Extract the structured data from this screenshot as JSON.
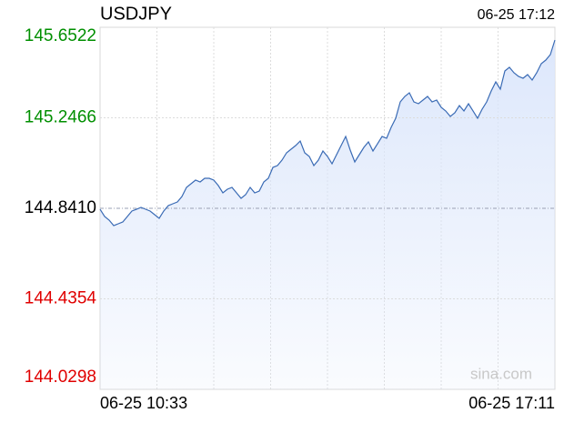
{
  "chart_data": {
    "type": "area-line",
    "title": "USDJPY",
    "timestamp": "06-25 17:12",
    "watermark": "sina.com",
    "color": "#3a6bb5",
    "fill": "#dbe6fb",
    "up_color": "#008f00",
    "down_color": "#e00000",
    "baseline": 144.841,
    "ylim": [
      144.0298,
      145.6522
    ],
    "yticks": [
      145.6522,
      145.2466,
      {
        "value": 144.841,
        "label": "144.8410"
      },
      144.4354,
      144.0298
    ],
    "grid": true,
    "categories": [
      "06-25 10:33",
      null,
      null,
      null,
      null,
      null,
      null,
      null,
      null,
      null,
      null,
      null,
      null,
      null,
      null,
      null,
      null,
      null,
      null,
      null,
      null,
      null,
      null,
      null,
      null,
      null,
      null,
      null,
      null,
      null,
      null,
      null,
      null,
      null,
      null,
      null,
      null,
      null,
      null,
      null,
      null,
      null,
      null,
      null,
      null,
      null,
      null,
      null,
      null,
      null,
      null,
      null,
      null,
      null,
      null,
      null,
      null,
      null,
      null,
      null,
      null,
      null,
      null,
      null,
      null,
      null,
      null,
      null,
      null,
      null,
      null,
      null,
      null,
      null,
      null,
      null,
      null,
      null,
      null,
      null,
      null,
      null,
      null,
      null,
      null,
      null,
      null,
      null,
      null,
      null,
      null,
      null,
      null,
      null,
      null,
      null,
      null,
      null,
      null,
      null,
      "06-25 17:11"
    ],
    "values": [
      144.8369,
      144.8043,
      144.788,
      144.7635,
      144.7717,
      144.7799,
      144.8043,
      144.8288,
      144.8369,
      144.8451,
      144.8369,
      144.8288,
      144.8125,
      144.7962,
      144.8288,
      144.8532,
      144.8614,
      144.8695,
      144.894,
      144.9348,
      144.9511,
      144.9674,
      144.9592,
      144.9755,
      144.9755,
      144.9674,
      144.9429,
      144.9103,
      144.9266,
      144.9348,
      144.9103,
      144.8858,
      144.9021,
      144.9348,
      144.9103,
      144.9184,
      144.9592,
      144.9755,
      145.0244,
      145.0326,
      145.057,
      145.0897,
      145.106,
      145.1223,
      145.1426,
      145.0897,
      145.0734,
      145.0326,
      145.057,
      145.0978,
      145.0734,
      145.0407,
      145.0815,
      145.1223,
      145.163,
      145.1019,
      145.0489,
      145.0815,
      145.1141,
      145.1386,
      145.0978,
      145.1304,
      145.163,
      145.1549,
      145.2038,
      145.2446,
      145.3179,
      145.3424,
      145.3587,
      145.3179,
      145.3098,
      145.3261,
      145.3424,
      145.3179,
      145.3261,
      145.2935,
      145.2772,
      145.2527,
      145.269,
      145.3016,
      145.2772,
      145.3098,
      145.2772,
      145.2446,
      145.2853,
      145.3179,
      145.3669,
      145.4076,
      145.375,
      145.4565,
      145.4728,
      145.4484,
      145.4321,
      145.4239,
      145.4402,
      145.4158,
      145.4484,
      145.4891,
      145.5054,
      145.5299,
      145.5951
    ]
  }
}
